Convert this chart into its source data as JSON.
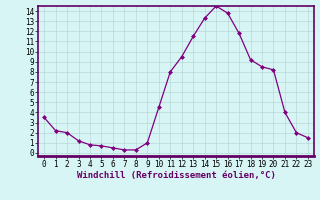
{
  "x": [
    0,
    1,
    2,
    3,
    4,
    5,
    6,
    7,
    8,
    9,
    10,
    11,
    12,
    13,
    14,
    15,
    16,
    17,
    18,
    19,
    20,
    21,
    22,
    23
  ],
  "y": [
    3.5,
    2.2,
    2.0,
    1.2,
    0.8,
    0.7,
    0.5,
    0.3,
    0.3,
    1.0,
    4.5,
    8.0,
    9.5,
    11.5,
    13.3,
    14.5,
    13.8,
    11.8,
    9.2,
    8.5,
    8.2,
    4.0,
    2.0,
    1.5
  ],
  "line_color": "#800080",
  "marker": "D",
  "marker_size": 2.0,
  "bg_color": "#d8f5f5",
  "grid_color": "#b8d8d8",
  "xlabel": "Windchill (Refroidissement éolien,°C)",
  "xlim": [
    -0.5,
    23.5
  ],
  "ylim": [
    -0.3,
    14.5
  ],
  "yticks": [
    0,
    1,
    2,
    3,
    4,
    5,
    6,
    7,
    8,
    9,
    10,
    11,
    12,
    13,
    14
  ],
  "xticks": [
    0,
    1,
    2,
    3,
    4,
    5,
    6,
    7,
    8,
    9,
    10,
    11,
    12,
    13,
    14,
    15,
    16,
    17,
    18,
    19,
    20,
    21,
    22,
    23
  ],
  "tick_fontsize": 5.5,
  "xlabel_fontsize": 6.5,
  "spine_color": "#660066",
  "line_width": 0.9
}
